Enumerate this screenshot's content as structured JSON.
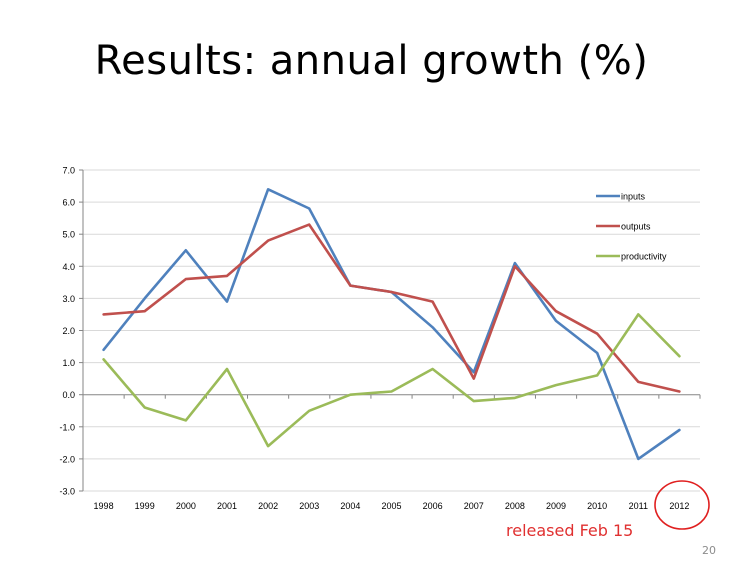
{
  "slide": {
    "title": "Results: annual growth (%)",
    "annotation": "released Feb 15",
    "page_number": "20"
  },
  "chart_data": {
    "type": "line",
    "title": "",
    "xlabel": "",
    "ylabel": "",
    "categories": [
      "1998",
      "1999",
      "2000",
      "2001",
      "2002",
      "2003",
      "2004",
      "2005",
      "2006",
      "2007",
      "2008",
      "2009",
      "2010",
      "2011",
      "2012"
    ],
    "ylim": [
      -3.0,
      7.0
    ],
    "yticks": [
      "7.0",
      "6.0",
      "5.0",
      "4.0",
      "3.0",
      "2.0",
      "1.0",
      "0.0",
      "-1.0",
      "-2.0",
      "-3.0"
    ],
    "grid": true,
    "legend_position": "top-right",
    "highlighted_category": "2012",
    "series": [
      {
        "name": "inputs",
        "color": "#4f81bd",
        "values": [
          1.4,
          3.0,
          4.5,
          2.9,
          6.4,
          5.8,
          3.4,
          3.2,
          2.1,
          0.7,
          4.1,
          2.3,
          1.3,
          -2.0,
          -1.1
        ]
      },
      {
        "name": "outputs",
        "color": "#c0504d",
        "values": [
          2.5,
          2.6,
          3.6,
          3.7,
          4.8,
          5.3,
          3.4,
          3.2,
          2.9,
          0.5,
          4.0,
          2.6,
          1.9,
          0.4,
          0.1
        ]
      },
      {
        "name": "productivity",
        "color": "#9bbb59",
        "values": [
          1.1,
          -0.4,
          -0.8,
          0.8,
          -1.6,
          -0.5,
          0.0,
          0.1,
          0.8,
          -0.2,
          -0.1,
          0.3,
          0.6,
          2.5,
          1.2
        ]
      }
    ]
  }
}
